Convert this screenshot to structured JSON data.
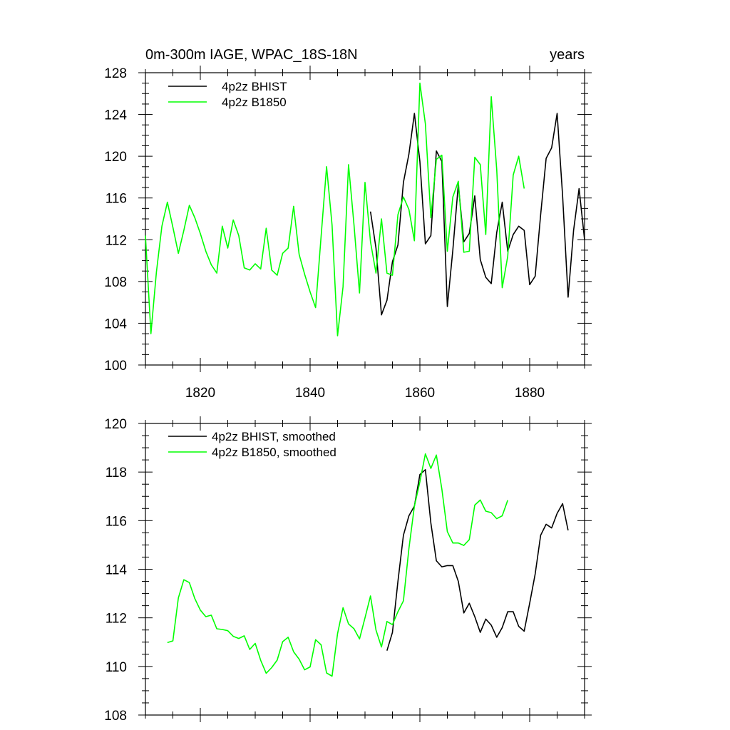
{
  "chart_data": [
    {
      "type": "line",
      "title": "0m-300m IAGE, WPAC_18S-18N",
      "title_right": "years",
      "xlim": [
        1810,
        1890
      ],
      "ylim": [
        100,
        128
      ],
      "xticks": [
        1820,
        1840,
        1860,
        1880
      ],
      "yticks": [
        100,
        104,
        108,
        112,
        116,
        120,
        124,
        128
      ],
      "legend_position": "top-left",
      "grid": false,
      "series": [
        {
          "name": "4p2z BHIST",
          "color": "#000000",
          "x": [
            1851,
            1852,
            1853,
            1854,
            1855,
            1856,
            1857,
            1858,
            1859,
            1860,
            1861,
            1862,
            1863,
            1864,
            1865,
            1866,
            1867,
            1868,
            1869,
            1870,
            1871,
            1872,
            1873,
            1874,
            1875,
            1876,
            1877,
            1878,
            1879,
            1880,
            1881,
            1882,
            1883,
            1884,
            1885,
            1886,
            1887,
            1888,
            1889,
            1890
          ],
          "y": [
            114.7,
            111.2,
            104.8,
            106.2,
            109.9,
            111.5,
            117.5,
            120.2,
            124.1,
            119.5,
            111.6,
            112.4,
            120.5,
            119.5,
            105.6,
            111.0,
            117.3,
            111.8,
            112.6,
            116.2,
            110.1,
            108.4,
            107.8,
            112.7,
            115.6,
            110.9,
            112.5,
            113.3,
            112.9,
            107.7,
            108.5,
            114.4,
            119.8,
            120.8,
            124.1,
            116.2,
            106.5,
            112.9,
            116.9,
            112.0
          ]
        },
        {
          "name": "4p2z B1850",
          "color": "#00ff00",
          "x": [
            1810,
            1811,
            1812,
            1813,
            1814,
            1815,
            1816,
            1817,
            1818,
            1819,
            1820,
            1821,
            1822,
            1823,
            1824,
            1825,
            1826,
            1827,
            1828,
            1829,
            1830,
            1831,
            1832,
            1833,
            1834,
            1835,
            1836,
            1837,
            1838,
            1839,
            1840,
            1841,
            1842,
            1843,
            1844,
            1845,
            1846,
            1847,
            1848,
            1849,
            1850,
            1851,
            1852,
            1853,
            1854,
            1855,
            1856,
            1857,
            1858,
            1859,
            1860,
            1861,
            1862,
            1863,
            1864,
            1865,
            1866,
            1867,
            1868,
            1869,
            1870,
            1871,
            1872,
            1873,
            1874,
            1875,
            1876,
            1877,
            1878,
            1879,
            1880
          ],
          "y": [
            112.4,
            103.0,
            108.9,
            113.3,
            115.6,
            113.2,
            110.7,
            112.9,
            115.3,
            114.1,
            112.6,
            110.9,
            109.6,
            108.8,
            113.3,
            111.2,
            113.9,
            112.4,
            109.3,
            109.1,
            109.7,
            109.2,
            113.1,
            109.1,
            108.6,
            110.7,
            111.2,
            115.2,
            110.6,
            108.7,
            107.0,
            105.5,
            112.3,
            119.0,
            113.4,
            102.8,
            107.5,
            119.2,
            113.4,
            106.9,
            117.5,
            111.8,
            108.8,
            114.0,
            108.8,
            108.6,
            114.4,
            116.1,
            114.9,
            111.9,
            127.0,
            123.1,
            114.1,
            119.7,
            120.1,
            110.9,
            116.1,
            117.6,
            110.8,
            110.9,
            119.9,
            119.2,
            112.5,
            125.7,
            118.7,
            107.4,
            110.4,
            118.2,
            120.0,
            116.9,
            null
          ]
        }
      ]
    },
    {
      "type": "line",
      "title": "",
      "xlim": [
        1810,
        1890
      ],
      "ylim": [
        108,
        120
      ],
      "xticks": [
        1820,
        1840,
        1860,
        1880
      ],
      "yticks": [
        108,
        110,
        112,
        114,
        116,
        118,
        120
      ],
      "legend_position": "top-left",
      "grid": false,
      "series": [
        {
          "name": "4p2z BHIST, smoothed",
          "color": "#000000",
          "x": [
            1854,
            1855,
            1856,
            1857,
            1858,
            1859,
            1860,
            1861,
            1862,
            1863,
            1864,
            1865,
            1866,
            1867,
            1868,
            1869,
            1870,
            1871,
            1872,
            1873,
            1874,
            1875,
            1876,
            1877,
            1878,
            1879,
            1880,
            1881,
            1882,
            1883,
            1884,
            1885,
            1886,
            1887
          ],
          "y": [
            110.65,
            111.4,
            113.5,
            115.4,
            116.2,
            116.6,
            117.9,
            118.1,
            115.9,
            114.35,
            114.1,
            114.15,
            114.15,
            113.5,
            112.2,
            112.6,
            112.05,
            111.4,
            111.95,
            111.7,
            111.2,
            111.6,
            112.25,
            112.25,
            111.65,
            111.45,
            112.6,
            113.8,
            115.4,
            115.85,
            115.7,
            116.3,
            116.7,
            115.6
          ]
        },
        {
          "name": "4p2z B1850, smoothed",
          "color": "#00ff00",
          "x": [
            1814,
            1815,
            1816,
            1817,
            1818,
            1819,
            1820,
            1821,
            1822,
            1823,
            1824,
            1825,
            1826,
            1827,
            1828,
            1829,
            1830,
            1831,
            1832,
            1833,
            1834,
            1835,
            1836,
            1837,
            1838,
            1839,
            1840,
            1841,
            1842,
            1843,
            1844,
            1845,
            1846,
            1847,
            1848,
            1849,
            1850,
            1851,
            1852,
            1853,
            1854,
            1855,
            1856,
            1857,
            1858,
            1859,
            1860,
            1861,
            1862,
            1863,
            1864,
            1865,
            1866,
            1867,
            1868,
            1869,
            1870,
            1871,
            1872,
            1873,
            1874,
            1875,
            1876,
            1877
          ],
          "y": [
            110.98,
            111.05,
            112.82,
            113.57,
            113.45,
            112.79,
            112.32,
            112.05,
            112.11,
            111.55,
            111.52,
            111.47,
            111.24,
            111.15,
            111.26,
            110.7,
            110.95,
            110.25,
            109.72,
            109.95,
            110.26,
            111.02,
            111.2,
            110.6,
            110.3,
            109.86,
            109.98,
            111.1,
            110.89,
            109.73,
            109.6,
            111.35,
            112.42,
            111.75,
            111.55,
            111.13,
            112.0,
            112.9,
            111.5,
            110.8,
            111.85,
            111.72,
            112.25,
            112.7,
            114.85,
            116.6,
            117.6,
            118.75,
            118.15,
            118.7,
            117.3,
            115.55,
            115.08,
            115.08,
            114.98,
            115.22,
            116.64,
            116.85,
            116.39,
            116.33,
            116.08,
            116.2,
            116.84,
            null
          ]
        }
      ]
    }
  ]
}
